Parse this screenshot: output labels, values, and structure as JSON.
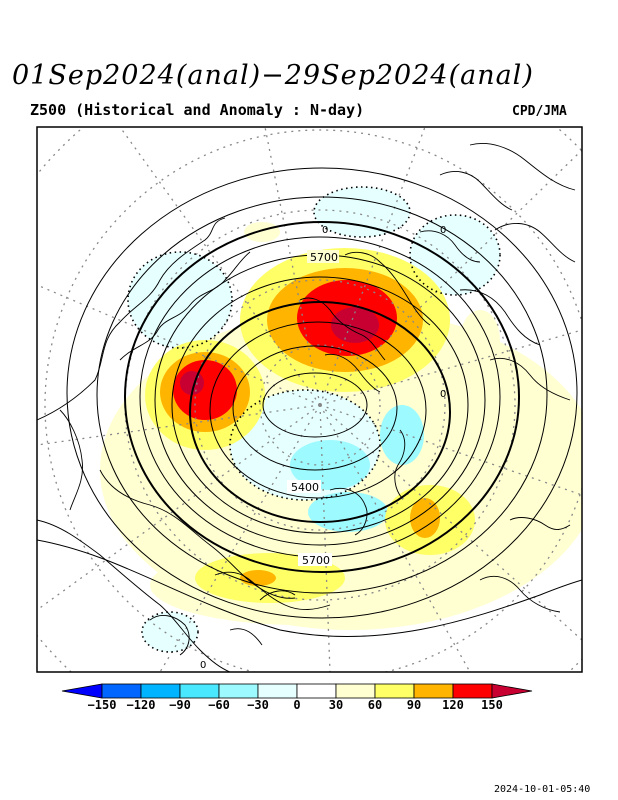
{
  "title": "01Sep2024(anal)−29Sep2024(anal)",
  "subtitle": "Z500 (Historical and Anomaly : N-day)",
  "credit": "CPD/JMA",
  "timestamp": "2024-10-01-05:40",
  "contour_labels": {
    "c5700_top": "5700",
    "c5400": "5400",
    "c5700_bottom": "5700"
  },
  "anomaly_zero_labels": {
    "z1": "0",
    "z2": "0",
    "z3": "0",
    "z4": "0"
  },
  "colorbar": {
    "ticks": [
      "−150",
      "−120",
      "−90",
      "−60",
      "−30",
      "0",
      "30",
      "60",
      "90",
      "120",
      "150"
    ],
    "colors": [
      "#0000ff",
      "#0066ff",
      "#00b4ff",
      "#4ae8ff",
      "#9dfaff",
      "#e6ffff",
      "#ffffff",
      "#ffffd2",
      "#ffff66",
      "#ffb400",
      "#ff0000",
      "#c80032"
    ]
  }
}
